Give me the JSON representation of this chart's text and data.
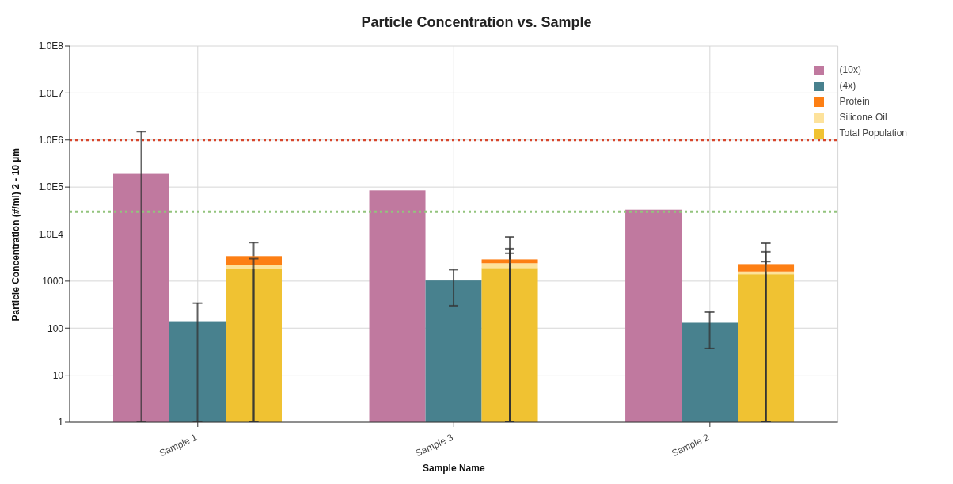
{
  "chart_data": {
    "type": "bar",
    "title": "Particle Concentration vs. Sample",
    "xlabel": "Sample Name",
    "ylabel": "Particle Concentration (#/ml) 2 - 10 µm",
    "categories": [
      "Sample 1",
      "Sample 3",
      "Sample 2"
    ],
    "series": [
      {
        "name": "(10x)",
        "color": "#c0799f",
        "values": [
          190000,
          85000,
          33000
        ],
        "errors": [
          [
            1,
            1500000
          ],
          null,
          null
        ]
      },
      {
        "name": "(4x)",
        "color": "#48818e",
        "values": [
          140,
          1030,
          130
        ],
        "errors": [
          [
            1,
            340
          ],
          [
            300,
            1750
          ],
          [
            37,
            220
          ]
        ]
      },
      {
        "name": "Total Population",
        "color": "#f0c232",
        "base": [
          1,
          1,
          1
        ],
        "values": [
          1800,
          1900,
          1400
        ],
        "errors": [
          [
            1,
            6600
          ],
          [
            1,
            8700
          ],
          [
            1,
            6400
          ]
        ]
      },
      {
        "name": "Silicone Oil",
        "color": "#fde29b",
        "base": [
          1800,
          1900,
          1400
        ],
        "values": [
          400,
          500,
          200
        ],
        "errors": [
          null,
          [
            1,
            4900
          ],
          [
            1,
            4200
          ]
        ]
      },
      {
        "name": "Protein",
        "color": "#fd7f14",
        "base": [
          2200,
          2400,
          1600
        ],
        "values": [
          1200,
          500,
          700
        ],
        "errors": [
          [
            1,
            3000
          ],
          [
            1,
            3900
          ],
          [
            1,
            2600
          ]
        ]
      }
    ],
    "log": "y",
    "ylim": [
      1,
      100000000
    ],
    "yticks": [
      1,
      10,
      100,
      1000,
      {
        "value": 10000,
        "label": "1.0E4"
      },
      {
        "value": 100000,
        "label": "1.0E5"
      },
      {
        "value": 1000000,
        "label": "1.0E6"
      },
      {
        "value": 10000000,
        "label": "1.0E7"
      },
      {
        "value": 100000000,
        "label": "1.0E8"
      }
    ],
    "ref_lines": [
      {
        "axis": "y",
        "value": 1000000,
        "color": "#d8452b",
        "line_style": "dotted"
      },
      {
        "axis": "y",
        "value": 30000,
        "color": "#93c47d",
        "line_style": "dotted"
      }
    ],
    "grid": true,
    "legend": "top right"
  }
}
